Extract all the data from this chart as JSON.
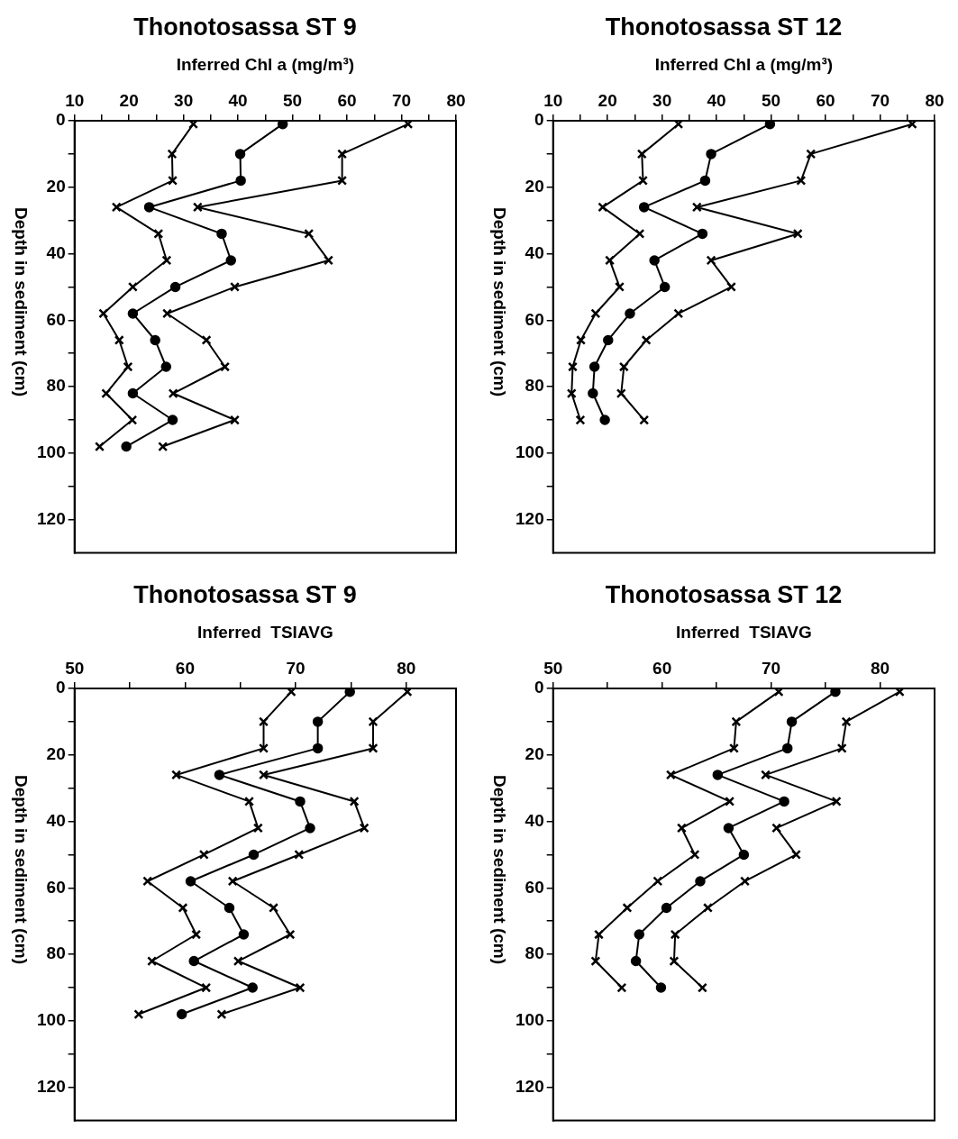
{
  "chart_data": [
    {
      "type": "line",
      "title": "Thonotosassa ST 9",
      "xlabel": "Inferred Chl a (mg/m³)",
      "ylabel": "Depth in sediment (cm)",
      "xlim": [
        10,
        80
      ],
      "xticks": [
        10,
        {
          "value": 15,
          "label": null
        },
        20,
        {
          "value": 25,
          "label": null
        },
        30,
        {
          "value": 35,
          "label": null
        },
        40,
        {
          "value": 45,
          "label": null
        },
        50,
        {
          "value": 55,
          "label": null
        },
        60,
        {
          "value": 65,
          "label": null
        },
        70,
        {
          "value": 75,
          "label": null
        },
        80
      ],
      "ylim": [
        130,
        0
      ],
      "yticks": [
        0,
        {
          "value": 10,
          "label": null
        },
        20,
        {
          "value": 30,
          "label": null
        },
        40,
        {
          "value": 50,
          "label": null
        },
        60,
        {
          "value": 70,
          "label": null
        },
        80,
        {
          "value": 90,
          "label": null
        },
        100,
        {
          "value": 110,
          "label": null
        },
        120
      ],
      "grid": false,
      "line_style": "solid",
      "series": [
        {
          "color": "#000000",
          "marker": "cross",
          "x": [
            31.8,
            27.9,
            28.0,
            17.7,
            25.4,
            26.9,
            20.7,
            15.3,
            18.2,
            19.8,
            15.8,
            20.6,
            14.6
          ],
          "values": [
            1,
            10,
            18,
            26,
            34,
            42,
            50,
            58,
            66,
            74,
            82,
            90,
            98
          ]
        },
        {
          "color": "#000000",
          "marker": "circle",
          "x": [
            48.2,
            40.4,
            40.5,
            23.7,
            37.0,
            38.7,
            28.5,
            20.7,
            24.8,
            26.8,
            20.7,
            28.0,
            19.5
          ],
          "values": [
            1,
            10,
            18,
            26,
            34,
            42,
            50,
            58,
            66,
            74,
            82,
            90,
            98
          ]
        },
        {
          "color": "#000000",
          "marker": "cross",
          "x": [
            71.2,
            59.1,
            59.1,
            32.6,
            53.0,
            56.6,
            39.4,
            27.0,
            34.2,
            37.6,
            28.1,
            39.4,
            26.2
          ],
          "values": [
            1,
            10,
            18,
            26,
            34,
            42,
            50,
            58,
            66,
            74,
            82,
            90,
            98
          ]
        }
      ]
    },
    {
      "type": "line",
      "title": "Thonotosassa ST 12",
      "xlabel": "Inferred Chl a (mg/m³)",
      "ylabel": "Depth in sediment (cm)",
      "xlim": [
        10,
        80
      ],
      "xticks": [
        10,
        {
          "value": 15,
          "label": null
        },
        20,
        {
          "value": 25,
          "label": null
        },
        30,
        {
          "value": 35,
          "label": null
        },
        40,
        {
          "value": 45,
          "label": null
        },
        50,
        {
          "value": 55,
          "label": null
        },
        60,
        {
          "value": 65,
          "label": null
        },
        70,
        {
          "value": 75,
          "label": null
        },
        80
      ],
      "ylim": [
        130,
        0
      ],
      "yticks": [
        0,
        {
          "value": 10,
          "label": null
        },
        20,
        {
          "value": 30,
          "label": null
        },
        40,
        {
          "value": 50,
          "label": null
        },
        60,
        {
          "value": 70,
          "label": null
        },
        80,
        {
          "value": 90,
          "label": null
        },
        100,
        {
          "value": 110,
          "label": null
        },
        120
      ],
      "grid": false,
      "line_style": "solid",
      "series": [
        {
          "color": "#000000",
          "marker": "cross",
          "x": [
            33.0,
            26.3,
            26.5,
            19.1,
            25.9,
            20.4,
            22.2,
            17.8,
            15.1,
            13.6,
            13.4,
            15.0
          ],
          "values": [
            1,
            10,
            18,
            26,
            34,
            42,
            50,
            58,
            66,
            74,
            82,
            90
          ]
        },
        {
          "color": "#000000",
          "marker": "circle",
          "x": [
            49.8,
            39.0,
            37.9,
            26.7,
            37.4,
            28.6,
            30.5,
            24.1,
            20.1,
            17.6,
            17.3,
            19.5
          ],
          "values": [
            1,
            10,
            18,
            26,
            34,
            42,
            50,
            58,
            66,
            74,
            82,
            90
          ]
        },
        {
          "color": "#000000",
          "marker": "cross",
          "x": [
            75.9,
            57.3,
            55.5,
            36.4,
            54.9,
            39.0,
            42.7,
            33.0,
            27.1,
            23.0,
            22.5,
            26.7
          ],
          "values": [
            1,
            10,
            18,
            26,
            34,
            42,
            50,
            58,
            66,
            74,
            82,
            90
          ]
        }
      ]
    },
    {
      "type": "line",
      "title": "Thonotosassa ST 9",
      "xlabel": "Inferred  TSIAVG",
      "ylabel": "Depth in sediment (cm)",
      "xlim": [
        50,
        84.5
      ],
      "xticks": [
        50,
        {
          "value": 55,
          "label": null
        },
        60,
        {
          "value": 65,
          "label": null
        },
        70,
        {
          "value": 75,
          "label": null
        },
        80
      ],
      "ylim": [
        130,
        0
      ],
      "yticks": [
        0,
        {
          "value": 10,
          "label": null
        },
        20,
        {
          "value": 30,
          "label": null
        },
        40,
        {
          "value": 50,
          "label": null
        },
        60,
        {
          "value": 70,
          "label": null
        },
        80,
        {
          "value": 90,
          "label": null
        },
        100,
        {
          "value": 110,
          "label": null
        },
        120
      ],
      "grid": false,
      "line_style": "solid",
      "series": [
        {
          "color": "#000000",
          "marker": "cross",
          "x": [
            69.6,
            67.1,
            67.1,
            59.2,
            65.8,
            66.6,
            61.7,
            56.6,
            59.8,
            61.0,
            57.0,
            61.9,
            55.8
          ],
          "values": [
            1,
            10,
            18,
            26,
            34,
            42,
            50,
            58,
            66,
            74,
            82,
            90,
            98
          ]
        },
        {
          "color": "#000000",
          "marker": "circle",
          "x": [
            74.9,
            72.0,
            72.0,
            63.1,
            70.4,
            71.3,
            66.2,
            60.5,
            64.0,
            65.3,
            60.8,
            66.1,
            59.7
          ],
          "values": [
            1,
            10,
            18,
            26,
            34,
            42,
            50,
            58,
            66,
            74,
            82,
            90,
            98
          ]
        },
        {
          "color": "#000000",
          "marker": "cross",
          "x": [
            80.1,
            77.0,
            77.0,
            67.1,
            75.3,
            76.2,
            70.3,
            64.3,
            68.0,
            69.5,
            64.8,
            70.4,
            63.3
          ],
          "values": [
            1,
            10,
            18,
            26,
            34,
            42,
            50,
            58,
            66,
            74,
            82,
            90,
            98
          ]
        }
      ]
    },
    {
      "type": "line",
      "title": "Thonotosassa ST 12",
      "xlabel": "Inferred  TSIAVG",
      "ylabel": "Depth in sediment (cm)",
      "xlim": [
        50,
        85
      ],
      "xticks": [
        50,
        {
          "value": 55,
          "label": null
        },
        60,
        {
          "value": 65,
          "label": null
        },
        70,
        {
          "value": 75,
          "label": null
        },
        80
      ],
      "ylim": [
        130,
        0
      ],
      "yticks": [
        0,
        {
          "value": 10,
          "label": null
        },
        20,
        {
          "value": 30,
          "label": null
        },
        40,
        {
          "value": 50,
          "label": null
        },
        60,
        {
          "value": 70,
          "label": null
        },
        80,
        {
          "value": 90,
          "label": null
        },
        100,
        {
          "value": 110,
          "label": null
        },
        120
      ],
      "grid": false,
      "line_style": "solid",
      "series": [
        {
          "color": "#000000",
          "marker": "cross",
          "x": [
            70.7,
            66.8,
            66.6,
            60.8,
            66.2,
            61.8,
            63.0,
            59.6,
            56.8,
            54.2,
            53.9,
            56.3
          ],
          "values": [
            1,
            10,
            18,
            26,
            34,
            42,
            50,
            58,
            66,
            74,
            82,
            90
          ]
        },
        {
          "color": "#000000",
          "marker": "circle",
          "x": [
            75.9,
            71.9,
            71.5,
            65.1,
            71.2,
            66.1,
            67.5,
            63.5,
            60.4,
            57.9,
            57.6,
            59.9
          ],
          "values": [
            1,
            10,
            18,
            26,
            34,
            42,
            50,
            58,
            66,
            74,
            82,
            90
          ]
        },
        {
          "color": "#000000",
          "marker": "cross",
          "x": [
            81.8,
            76.9,
            76.5,
            69.5,
            76.0,
            70.5,
            72.3,
            67.6,
            64.2,
            61.2,
            61.1,
            63.7
          ],
          "values": [
            1,
            10,
            18,
            26,
            34,
            42,
            50,
            58,
            66,
            74,
            82,
            90
          ]
        }
      ]
    }
  ]
}
